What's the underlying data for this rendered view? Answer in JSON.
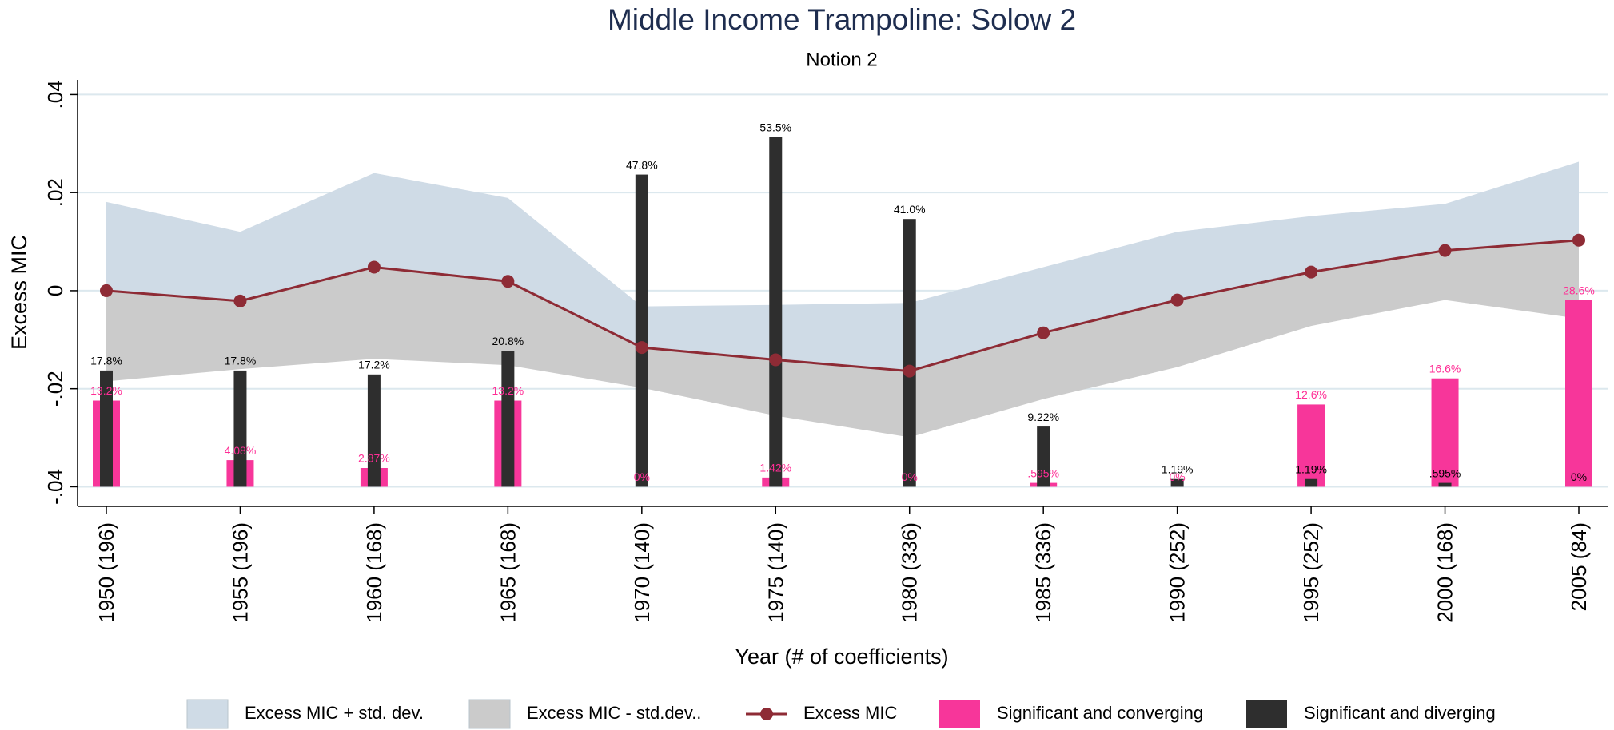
{
  "chart_data": {
    "type": "combo",
    "title": "Middle Income Trampoline: Solow 2",
    "subtitle": "Notion 2",
    "xlabel": "Year (# of coefficients)",
    "ylabel": "Excess MIC",
    "categories": [
      "1950 (196)",
      "1955 (196)",
      "1960 (168)",
      "1965 (168)",
      "1970 (140)",
      "1975 (140)",
      "1980 (336)",
      "1985 (336)",
      "1990 (252)",
      "1995 (252)",
      "2000 (168)",
      "2005 (84)"
    ],
    "ylim": [
      -0.044,
      0.043
    ],
    "yticks": [
      {
        "value": -0.04,
        "label": "-.04"
      },
      {
        "value": -0.02,
        "label": "-.02"
      },
      {
        "value": 0,
        "label": "0"
      },
      {
        "value": 0.02,
        "label": ".02"
      },
      {
        "value": 0.04,
        "label": ".04"
      }
    ],
    "y2lim": [
      -3.0,
      62.3
    ],
    "grid": true,
    "legend": "bottom",
    "series": [
      {
        "name": "Excess MIC + std. dev.",
        "type": "area",
        "color": "#cfdbe6",
        "values": [
          0.0181,
          0.012,
          0.024,
          0.0189,
          -0.0032,
          -0.0029,
          -0.0025,
          0.0048,
          0.012,
          0.0152,
          0.0177,
          0.0263
        ]
      },
      {
        "name": "Excess MIC - std.dev..",
        "type": "area",
        "color": "#cbcbcb",
        "values": [
          -0.0185,
          -0.016,
          -0.0139,
          -0.0152,
          -0.0198,
          -0.0255,
          -0.0299,
          -0.0221,
          -0.0156,
          -0.0072,
          -0.0019,
          -0.0057
        ]
      },
      {
        "name": "Excess MIC",
        "type": "line",
        "color": "#8e2b35",
        "values": [
          0.0,
          -0.0021,
          0.0048,
          0.0019,
          -0.0116,
          -0.0141,
          -0.0164,
          -0.0086,
          -0.0019,
          0.0038,
          0.0082,
          0.0103
        ]
      },
      {
        "name": "Significant and converging",
        "type": "bar",
        "axis": "y2",
        "color": "#f7369a",
        "values": [
          13.2,
          4.08,
          2.87,
          13.2,
          0,
          1.42,
          0,
          0.595,
          0,
          12.6,
          16.6,
          28.6
        ],
        "value_labels": [
          "13.2%",
          "4.08%",
          "2.87%",
          "13.2%",
          "0%",
          "1.42%",
          "0%",
          ".595%",
          "0%",
          "12.6%",
          "16.6%",
          "28.6%"
        ]
      },
      {
        "name": "Significant and diverging",
        "type": "bar",
        "axis": "y2",
        "color": "#2e2e2e",
        "values": [
          17.8,
          17.8,
          17.2,
          20.8,
          47.8,
          53.5,
          41.0,
          9.22,
          1.19,
          1.19,
          0.595,
          0
        ],
        "value_labels": [
          "17.8%",
          "17.8%",
          "17.2%",
          "20.8%",
          "47.8%",
          "53.5%",
          "41.0%",
          "9.22%",
          "1.19%",
          "1.19%",
          ".595%",
          "0%"
        ]
      }
    ]
  }
}
